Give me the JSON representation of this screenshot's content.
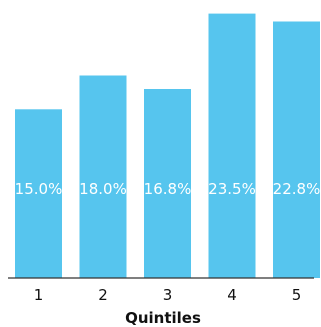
{
  "chart_data": {
    "type": "bar",
    "categories": [
      "1",
      "2",
      "3",
      "4",
      "5"
    ],
    "values": [
      15.0,
      18.0,
      16.8,
      23.5,
      22.8
    ],
    "data_labels": [
      "15.0%",
      "18.0%",
      "16.8%",
      "23.5%",
      "22.8%"
    ],
    "xlabel": "Quintiles",
    "ylim": [
      0,
      24
    ],
    "grid": false,
    "colors": {
      "bar": "#56c5ee",
      "axis": "#333333",
      "text": "#111111"
    }
  }
}
